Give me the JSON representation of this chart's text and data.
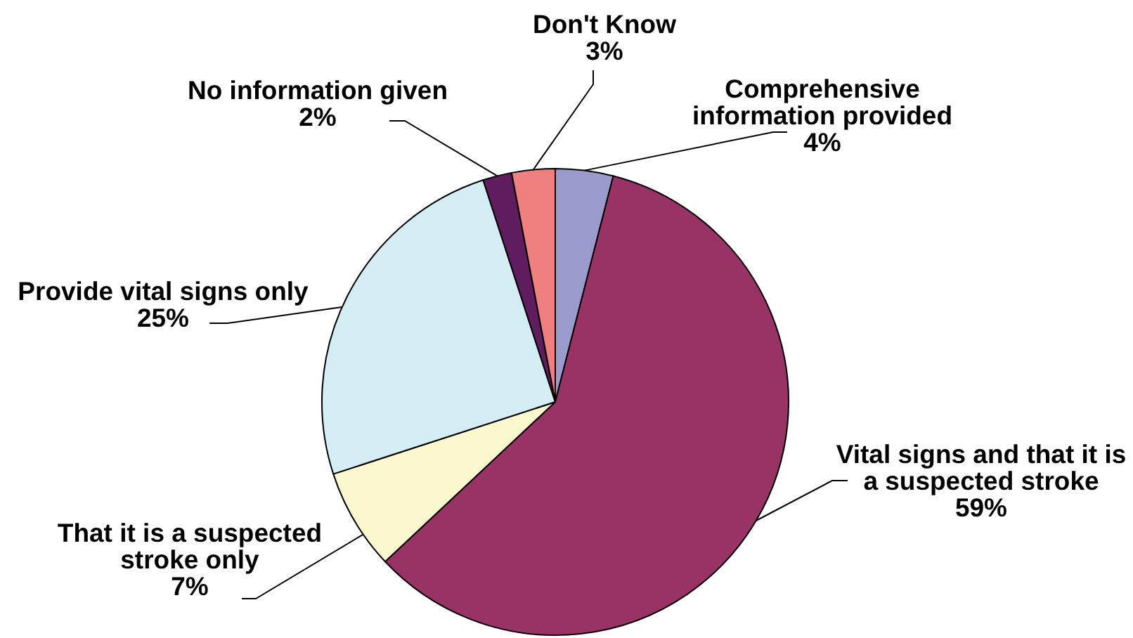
{
  "chart_data": {
    "type": "pie",
    "categories": [
      "Comprehensive information provided",
      "Vital signs and that it is a suspected stroke",
      "That it is a suspected stroke only",
      "Provide vital signs only",
      "No information given",
      "Don't Know"
    ],
    "values": [
      4,
      59,
      7,
      25,
      2,
      3
    ],
    "colors": [
      "#9a9acc",
      "#993366",
      "#fbf8d0",
      "#d4ecf3",
      "#5f1d5f",
      "#f08080"
    ],
    "value_labels": [
      "4%",
      "59%",
      "7%",
      "25%",
      "2%",
      "3%"
    ]
  }
}
